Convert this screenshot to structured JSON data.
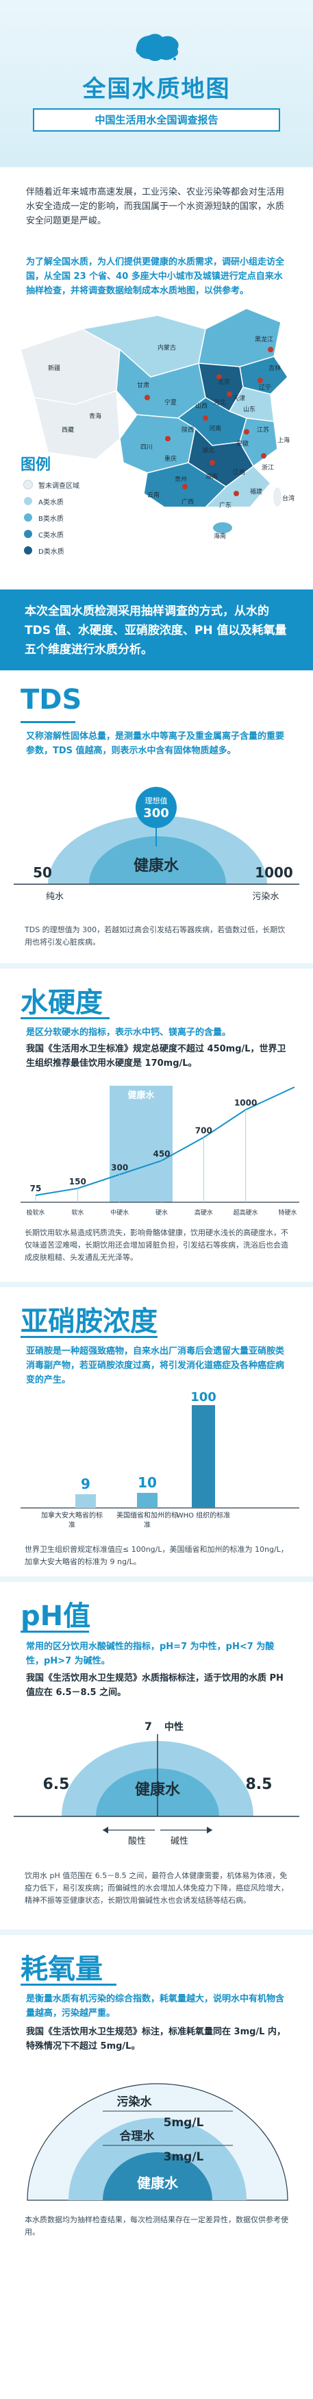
{
  "header": {
    "title": "全国水质地图",
    "subtitle": "中国生活用水全国调查报告"
  },
  "intro": {
    "paragraph": "伴随着近年来城市高速发展，工业污染、农业污染等都会对生活用水安全造成一定的影响，而我国属于一个水资源短缺的国家，水质安全问题更是严峻。",
    "paragraph2": "为了解全国水质，为人们提供更健康的水质需求，调研小组走访全国，从全国 23 个省、40 多座大中小城市及城镇进行定点自来水抽样检查，并将调查数据绘制成本水质地图，以供参考。"
  },
  "map": {
    "labels": [
      "黑龙江",
      "吉林",
      "辽宁",
      "新疆",
      "内蒙古",
      "北京",
      "天津",
      "河北",
      "山西",
      "宁夏",
      "甘肃",
      "青海",
      "西藏",
      "四川",
      "重庆",
      "陕西",
      "河南",
      "山东",
      "江苏",
      "安徽",
      "湖北",
      "上海",
      "浙江",
      "江西",
      "湖南",
      "福建",
      "贵州",
      "云南",
      "广西",
      "广东",
      "海南",
      "台湾"
    ],
    "legend_title": "图例",
    "legend": [
      {
        "label": "暂未调查区域",
        "color": "#e8eef1"
      },
      {
        "label": "A类水质",
        "color": "#a7d8ea"
      },
      {
        "label": "B类水质",
        "color": "#5fb5d6"
      },
      {
        "label": "C类水质",
        "color": "#2b8bb5"
      },
      {
        "label": "D类水质",
        "color": "#1b5e86"
      }
    ]
  },
  "banner": {
    "text": "本次全国水质检测采用抽样调查的方式，从水的 TDS 值、水硬度、亚硝胺浓度、PH 值以及耗氧量五个维度进行水质分析。"
  },
  "tds": {
    "title": "TDS",
    "desc": "又称溶解性固体总量，是测量水中等离子及重金属离子含量的重要参数，TDS 值越高，则表示水中含有固体物质越多。",
    "ideal_label": "理想值",
    "ideal_value": "300",
    "arc_label": "健康水",
    "left_value": "50",
    "right_value": "1000",
    "left_label": "纯水",
    "right_label": "污染水",
    "note": "TDS 的理想值为 300，若越如过高会引发结石等器疾病，若值数过低，长期饮用也将引发心脏疾病。"
  },
  "hardness": {
    "title": "水硬度",
    "desc": "是区分软硬水的指标，表示水中钙、镁离子的含量。",
    "desc2": "我国《生活用水卫生标准》规定总硬度不超过 450mg/L，世界卫生组织推荐最佳饮用水硬度是 170mg/L。",
    "healthy_label": "健康水",
    "note": "长期饮用软水易造成钙质流失，影响骨骼体健康，饮用硬水浅长的高硬度水，不仅味道苦涩难喝，长期饮用还会增加肾脏负担，引发结石等疾病，洗浴后也会造成皮肤粗糙、头发通乱无光泽等。"
  },
  "chart_data": {
    "type": "line",
    "categories": [
      "极软水",
      "软水",
      "中硬水",
      "硬水",
      "高硬水",
      "超高硬水",
      "特硬水"
    ],
    "values": [
      75,
      150,
      300,
      450,
      700,
      1000,
      null
    ],
    "title": "",
    "xlabel": "",
    "ylabel": ""
  },
  "nitrosamine": {
    "title": "亚硝胺浓度",
    "desc": "亚硝胺是一种超强致癌物，自来水出厂消毒后会遗留大量亚硝胺类消毒副产物，若亚硝胺浓度过高，将引发消化道癌症及各种癌症病变的产生。",
    "bars": [
      {
        "value": "9",
        "label": "加拿大安大略省的标准"
      },
      {
        "value": "10",
        "label": "美国缅省和加州的标准"
      },
      {
        "value": "100",
        "label": "WHO 组织的标准"
      }
    ],
    "note": "世界卫生组织曾规定标准值应≤ 100ng/L，美国缅省和加州的标准为 10ng/L，加拿大安大略省的标准为 9 ng/L。"
  },
  "ph": {
    "title": "pH值",
    "desc": "常用的区分饮用水酸碱性的指标，pH=7 为中性，pH<7 为酸性，pH>7 为碱性。",
    "desc2": "我国《生活饮用水卫生规范》水质指标标注，适于饮用的水质 PH 值应在 6.5－8.5 之间。",
    "neutral_label": "中性",
    "neutral_value": "7",
    "left_value": "6.5",
    "right_value": "8.5",
    "arc_label": "健康水",
    "acid_label": "酸性",
    "alkali_label": "碱性",
    "note": "饮用水 pH 值范围在 6.5－8.5 之间，最符合人体健康需要，机体易为体液，免疫力低下，易引发疾病；而偏碱性的水会增加人体免疫力下降，癌症风险增大，精神不振等亚健康状态，长期饮用偏碱性水也会诱发结肠等结石病。"
  },
  "oxygen": {
    "title": "耗氧量",
    "desc": "是衡量水质有机污染的综合指数，耗氧量越大，说明水中有机物含量越高，污染越严重。",
    "desc2": "我国《生活饮用水卫生规范》标注，标准耗氧量同在 3mg/L 内，特殊情况下不超过 5mg/L。",
    "layers": [
      {
        "label": "污染水",
        "value": "5mg/L"
      },
      {
        "label": "合理水",
        "value": "3mg/L"
      },
      {
        "label": "健康水",
        "value": ""
      }
    ],
    "note": "本水质数据均为抽样检查结果，每次检测结果存在一定差异性，数据仅供参考使用。"
  }
}
